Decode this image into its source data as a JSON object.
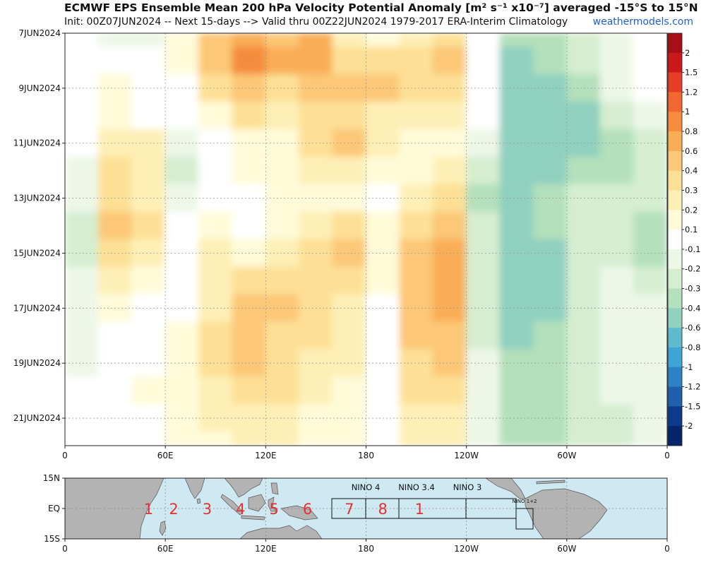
{
  "header": {
    "title": "ECMWF EPS Ensemble Mean 200 hPa Velocity Potential Anomaly [m² s⁻¹ x10⁻⁷] averaged -15°S to 15°N",
    "subtitle": "Init: 00Z07JUN2024 -- Next 15-days --> Valid thru 00Z22JUN2024 1979-2017 ERA-Interim Climatology",
    "source": "weathermodels.com"
  },
  "chart_data": [
    {
      "type": "heatmap",
      "title": "ECMWF EPS Ensemble Mean 200 hPa Velocity Potential Anomaly [m² s⁻¹ x10⁻⁷] averaged -15°S to 15°N",
      "x_axis": {
        "ticks": [
          "0",
          "60E",
          "120E",
          "180",
          "120W",
          "60W",
          "0"
        ],
        "range_deg_east": [
          0,
          360
        ]
      },
      "y_axis": {
        "ticks": [
          "7JUN2024",
          "9JUN2024",
          "11JUN2024",
          "13JUN2024",
          "15JUN2024",
          "17JUN2024",
          "19JUN2024",
          "21JUN2024"
        ],
        "range": [
          "7JUN2024",
          "22JUN2024"
        ]
      },
      "longitudes_deg_east": [
        0,
        20,
        40,
        60,
        80,
        100,
        120,
        140,
        160,
        180,
        200,
        220,
        240,
        260,
        280,
        300,
        320,
        340
      ],
      "rows": [
        {
          "date": "7JUN2024",
          "values": [
            0.0,
            -0.2,
            -0.2,
            0.1,
            0.4,
            0.7,
            0.5,
            0.6,
            0.2,
            0.1,
            0.2,
            0.3,
            0.0,
            -0.4,
            -0.4,
            -0.3,
            -0.2,
            -0.1
          ]
        },
        {
          "date": "8JUN2024",
          "values": [
            0.0,
            0.0,
            -0.1,
            0.1,
            0.5,
            0.8,
            0.6,
            0.6,
            0.3,
            0.3,
            0.3,
            0.5,
            0.0,
            -0.6,
            -0.4,
            -0.3,
            -0.2,
            -0.1
          ]
        },
        {
          "date": "9JUN2024",
          "values": [
            0.0,
            0.1,
            0.0,
            0.0,
            0.3,
            0.5,
            0.3,
            0.4,
            0.4,
            0.4,
            0.3,
            0.3,
            0.0,
            -0.6,
            -0.5,
            -0.4,
            -0.2,
            -0.1
          ]
        },
        {
          "date": "10JUN2024",
          "values": [
            0.0,
            0.1,
            0.0,
            -0.1,
            0.1,
            0.3,
            0.2,
            0.3,
            0.3,
            0.2,
            0.2,
            0.2,
            -0.1,
            -0.6,
            -0.6,
            -0.6,
            -0.3,
            -0.2
          ]
        },
        {
          "date": "11JUN2024",
          "values": [
            -0.1,
            0.2,
            0.2,
            -0.2,
            0.0,
            0.1,
            0.1,
            0.3,
            0.4,
            0.2,
            0.1,
            0.1,
            -0.2,
            -0.6,
            -0.6,
            -0.5,
            -0.4,
            -0.3
          ]
        },
        {
          "date": "12JUN2024",
          "values": [
            -0.2,
            0.3,
            0.2,
            -0.3,
            -0.1,
            0.1,
            0.1,
            0.2,
            0.2,
            0.1,
            0.1,
            0.2,
            -0.3,
            -0.6,
            -0.5,
            -0.4,
            -0.4,
            -0.3
          ]
        },
        {
          "date": "13JUN2024",
          "values": [
            -0.2,
            0.3,
            0.2,
            -0.2,
            0.0,
            0.0,
            0.1,
            0.1,
            0.1,
            0.0,
            0.2,
            0.3,
            -0.4,
            -0.5,
            -0.4,
            -0.3,
            -0.3,
            -0.3
          ]
        },
        {
          "date": "14JUN2024",
          "values": [
            -0.3,
            0.4,
            0.3,
            -0.1,
            0.1,
            -0.1,
            0.1,
            0.2,
            0.3,
            0.1,
            0.3,
            0.4,
            -0.3,
            -0.5,
            -0.4,
            -0.3,
            -0.3,
            -0.4
          ]
        },
        {
          "date": "15JUN2024",
          "values": [
            -0.3,
            0.3,
            0.2,
            0.0,
            0.2,
            0.1,
            0.2,
            0.3,
            0.4,
            0.1,
            0.4,
            0.6,
            -0.3,
            -0.6,
            -0.5,
            -0.3,
            -0.3,
            -0.4
          ]
        },
        {
          "date": "16JUN2024",
          "values": [
            -0.2,
            0.2,
            0.1,
            0.0,
            0.2,
            0.3,
            0.3,
            0.3,
            0.3,
            0.1,
            0.5,
            0.6,
            -0.3,
            -0.6,
            -0.5,
            -0.3,
            -0.2,
            -0.3
          ]
        },
        {
          "date": "17JUN2024",
          "values": [
            -0.2,
            0.1,
            0.0,
            0.0,
            0.2,
            0.4,
            0.4,
            0.3,
            0.2,
            0.0,
            0.5,
            0.6,
            -0.3,
            -0.6,
            -0.5,
            -0.3,
            -0.2,
            -0.2
          ]
        },
        {
          "date": "18JUN2024",
          "values": [
            -0.2,
            0.0,
            0.0,
            0.1,
            0.3,
            0.4,
            0.3,
            0.3,
            0.2,
            0.0,
            0.4,
            0.5,
            -0.3,
            -0.5,
            -0.4,
            -0.3,
            -0.2,
            -0.2
          ]
        },
        {
          "date": "19JUN2024",
          "values": [
            -0.2,
            0.0,
            0.0,
            0.1,
            0.3,
            0.4,
            0.3,
            0.2,
            0.2,
            0.0,
            0.3,
            0.4,
            -0.2,
            -0.4,
            -0.4,
            -0.3,
            -0.2,
            -0.2
          ]
        },
        {
          "date": "20JUN2024",
          "values": [
            -0.1,
            0.0,
            0.1,
            0.1,
            0.2,
            0.3,
            0.3,
            0.2,
            0.1,
            0.0,
            0.3,
            0.3,
            -0.2,
            -0.4,
            -0.4,
            -0.3,
            -0.2,
            -0.2
          ]
        },
        {
          "date": "21JUN2024",
          "values": [
            -0.1,
            0.0,
            0.0,
            0.1,
            0.2,
            0.2,
            0.2,
            0.1,
            0.1,
            0.0,
            0.2,
            0.2,
            -0.2,
            -0.4,
            -0.4,
            -0.3,
            -0.3,
            -0.2
          ]
        },
        {
          "date": "22JUN2024",
          "values": [
            -0.1,
            0.0,
            0.0,
            0.1,
            0.1,
            0.2,
            0.2,
            0.1,
            0.1,
            0.0,
            0.2,
            0.2,
            -0.2,
            -0.4,
            -0.4,
            -0.3,
            -0.3,
            -0.2
          ]
        }
      ],
      "colorbar": {
        "levels": [
          "2",
          "1.5",
          "1.2",
          "1",
          "0.8",
          "0.6",
          "0.4",
          "0.3",
          "0.2",
          "0.1",
          "-0.1",
          "-0.2",
          "-0.3",
          "-0.4",
          "-0.6",
          "-0.8",
          "-1",
          "-1.2",
          "-1.5",
          "-2"
        ],
        "colors": [
          "#a50f15",
          "#cb181d",
          "#e43f26",
          "#f0672f",
          "#f58c3e",
          "#f9ad56",
          "#fcc777",
          "#fde096",
          "#feefb6",
          "#fffbd9",
          "#ffffff",
          "#edf7e8",
          "#d5eed0",
          "#b4e0bb",
          "#8fd0bf",
          "#5fbbcc",
          "#3da5d6",
          "#2b83c6",
          "#1f5fad",
          "#0d3a8a",
          "#07256b"
        ]
      }
    },
    {
      "type": "map",
      "x_axis": {
        "ticks": [
          "0",
          "60E",
          "120E",
          "180",
          "120W",
          "60W",
          "0"
        ]
      },
      "y_axis": {
        "ticks": [
          "15N",
          "EQ",
          "15S"
        ]
      },
      "box_labels": [
        "NINO 4",
        "NINO 3.4",
        "NINO 3",
        "NINO 1+2"
      ],
      "mjo_phase_labels": [
        "1",
        "2",
        "3",
        "4",
        "5",
        "6",
        "7",
        "8",
        "1"
      ],
      "colors": {
        "ocean": "#cfe9f2",
        "land": "#b3b3b3"
      }
    }
  ]
}
